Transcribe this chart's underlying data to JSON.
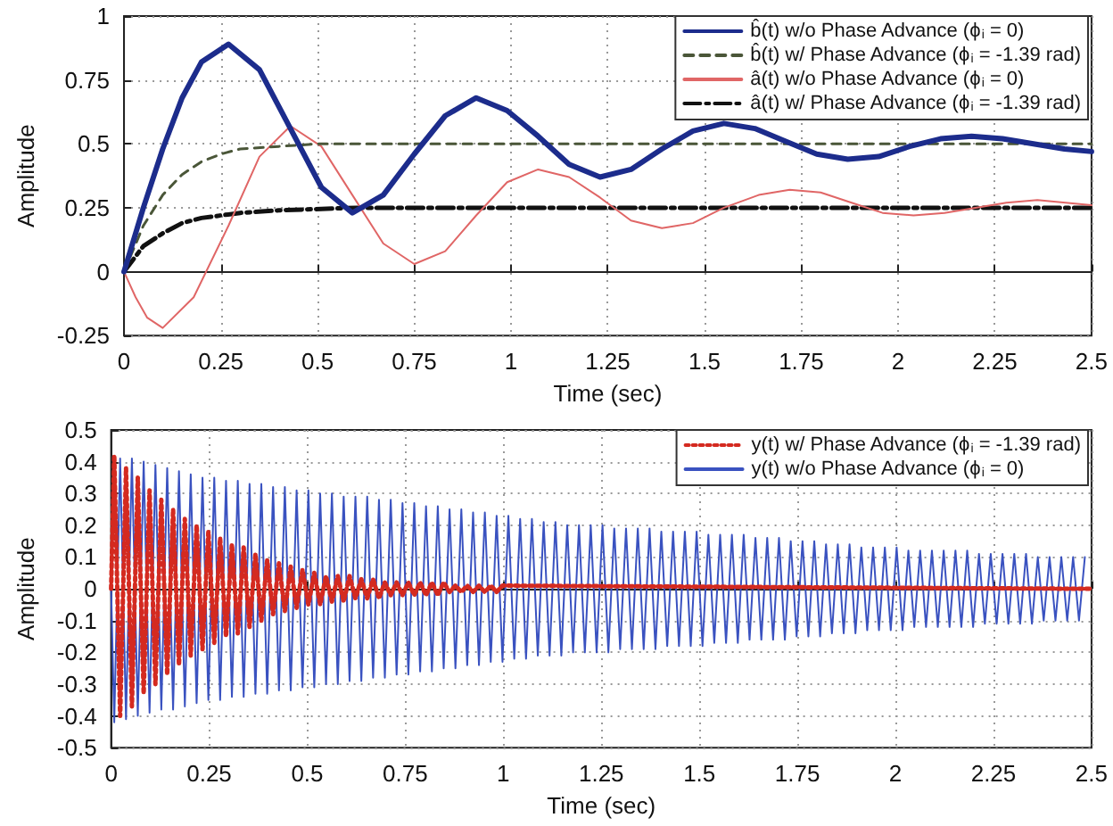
{
  "chart_data": [
    {
      "type": "line",
      "xlabel": "Time (sec)",
      "ylabel": "Amplitude",
      "xlim": [
        0,
        2.5
      ],
      "xticks": [
        0,
        0.25,
        0.5,
        0.75,
        1,
        1.25,
        1.5,
        1.75,
        2,
        2.25,
        2.5
      ],
      "ylim": [
        -0.25,
        1
      ],
      "yticks": [
        -0.25,
        0,
        0.25,
        0.5,
        0.75,
        1
      ],
      "grid": true,
      "legend": "top right",
      "marker": "none",
      "series": [
        {
          "name": "b̂(t) w/o Phase Advance (ϕ$_{i}$ = 0)",
          "color": "#1c2c8c",
          "line_style": "solid",
          "x": [
            0,
            0.05,
            0.1,
            0.15,
            0.2,
            0.27,
            0.35,
            0.43,
            0.51,
            0.59,
            0.67,
            0.75,
            0.83,
            0.91,
            0.99,
            1.07,
            1.15,
            1.23,
            1.31,
            1.39,
            1.47,
            1.55,
            1.63,
            1.71,
            1.79,
            1.87,
            1.95,
            2.03,
            2.11,
            2.19,
            2.27,
            2.35,
            2.43,
            2.5
          ],
          "values": [
            0,
            0.25,
            0.48,
            0.68,
            0.82,
            0.89,
            0.79,
            0.56,
            0.33,
            0.23,
            0.3,
            0.46,
            0.61,
            0.68,
            0.63,
            0.53,
            0.42,
            0.37,
            0.4,
            0.48,
            0.55,
            0.58,
            0.56,
            0.51,
            0.46,
            0.44,
            0.45,
            0.49,
            0.52,
            0.53,
            0.52,
            0.5,
            0.48,
            0.47
          ]
        },
        {
          "name": "b̂(t) w/ Phase Advance (ϕ$_{i}$ = -1.39 rad)",
          "color": "#4a5638",
          "line_style": "dashed",
          "x": [
            0,
            0.05,
            0.1,
            0.15,
            0.2,
            0.25,
            0.3,
            0.4,
            0.5,
            2.5
          ],
          "values": [
            0,
            0.18,
            0.3,
            0.38,
            0.43,
            0.46,
            0.48,
            0.49,
            0.5,
            0.5
          ]
        },
        {
          "name": "â(t) w/o Phase Advance (ϕ$_{i}$ = 0)",
          "color": "#e06666",
          "line_style": "solid",
          "x": [
            0,
            0.03,
            0.06,
            0.1,
            0.18,
            0.27,
            0.35,
            0.43,
            0.51,
            0.59,
            0.67,
            0.75,
            0.83,
            0.91,
            0.99,
            1.07,
            1.15,
            1.23,
            1.31,
            1.39,
            1.47,
            1.55,
            1.64,
            1.72,
            1.8,
            1.88,
            1.96,
            2.04,
            2.12,
            2.2,
            2.28,
            2.36,
            2.5
          ],
          "values": [
            0,
            -0.1,
            -0.18,
            -0.22,
            -0.1,
            0.18,
            0.45,
            0.57,
            0.49,
            0.3,
            0.11,
            0.03,
            0.08,
            0.22,
            0.35,
            0.4,
            0.37,
            0.29,
            0.2,
            0.17,
            0.19,
            0.25,
            0.3,
            0.32,
            0.31,
            0.27,
            0.23,
            0.22,
            0.23,
            0.25,
            0.27,
            0.28,
            0.26
          ]
        },
        {
          "name": "â(t) w/ Phase Advance (ϕ$_{i}$ = -1.39 rad)",
          "color": "#111111",
          "line_style": "dashdot",
          "x": [
            0,
            0.05,
            0.1,
            0.15,
            0.2,
            0.25,
            0.3,
            0.4,
            0.6,
            2.5
          ],
          "values": [
            0,
            0.1,
            0.15,
            0.19,
            0.21,
            0.22,
            0.23,
            0.24,
            0.25,
            0.25
          ]
        }
      ]
    },
    {
      "type": "line",
      "xlabel": "Time (sec)",
      "ylabel": "Amplitude",
      "xlim": [
        0,
        2.5
      ],
      "xticks": [
        0,
        0.25,
        0.5,
        0.75,
        1,
        1.25,
        1.5,
        1.75,
        2,
        2.25,
        2.5
      ],
      "ylim": [
        -0.5,
        0.5
      ],
      "yticks": [
        -0.5,
        -0.4,
        -0.3,
        -0.2,
        -0.1,
        0,
        0.1,
        0.2,
        0.3,
        0.4,
        0.5
      ],
      "grid": true,
      "legend": "top right",
      "marker": "none",
      "series": [
        {
          "name": "y(t) w/ Phase Advance (ϕ$_{i}$ = -1.39 rad)",
          "color": "#d42a20",
          "line_style": "dotted",
          "x": [
            0,
            0.008,
            0.023,
            0.038,
            0.053,
            0.068,
            0.083,
            0.098,
            0.113,
            0.128,
            0.143,
            0.158,
            0.173,
            0.188,
            0.203,
            0.218,
            0.233,
            0.248,
            0.263,
            0.278,
            0.293,
            0.308,
            0.323,
            0.338,
            0.353,
            0.368,
            0.383,
            0.398,
            0.413,
            0.428,
            0.443,
            0.458,
            0.473,
            0.488,
            0.503,
            0.518,
            0.533,
            0.548,
            0.563,
            0.578,
            0.593,
            0.608,
            0.623,
            0.638,
            0.653,
            0.668,
            0.683,
            0.698,
            0.713,
            0.728,
            0.743,
            0.758,
            0.773,
            0.788,
            0.803,
            0.818,
            0.833,
            0.848,
            0.863,
            0.878,
            0.893,
            0.908,
            0.923,
            0.938,
            0.953,
            0.968,
            0.983,
            0.998,
            2.5
          ],
          "values": [
            0,
            0.42,
            -0.4,
            0.38,
            -0.37,
            0.35,
            -0.33,
            0.31,
            -0.3,
            0.28,
            -0.27,
            0.25,
            -0.24,
            0.22,
            -0.21,
            0.2,
            -0.19,
            0.18,
            -0.17,
            0.16,
            -0.15,
            0.14,
            -0.14,
            0.13,
            -0.12,
            0.11,
            -0.1,
            0.09,
            -0.08,
            0.08,
            -0.07,
            0.07,
            -0.06,
            0.06,
            -0.05,
            0.05,
            -0.05,
            0.04,
            -0.04,
            0.04,
            -0.04,
            0.04,
            -0.03,
            0.03,
            -0.03,
            0.03,
            -0.03,
            0.02,
            -0.02,
            0.02,
            -0.02,
            0.02,
            -0.02,
            0.02,
            -0.02,
            0.02,
            -0.02,
            0.02,
            -0.01,
            0.01,
            -0.01,
            0.01,
            -0.01,
            0.01,
            -0.01,
            0.01,
            -0.01,
            0.01,
            0
          ]
        },
        {
          "name": "y(t) w/o Phase Advance (ϕ$_{i}$ = 0)",
          "color": "#3a52c0",
          "line_style": "solid",
          "x": [
            0,
            0.008,
            0.023,
            0.038,
            0.053,
            0.068,
            0.083,
            0.098,
            0.113,
            0.128,
            0.143,
            0.158,
            0.173,
            0.188,
            0.203,
            0.218,
            0.233,
            0.248,
            0.263,
            0.278,
            0.293,
            0.308,
            0.323,
            0.338,
            0.353,
            0.368,
            0.383,
            0.398,
            0.413,
            0.428,
            0.443,
            0.458,
            0.473,
            0.488,
            0.503,
            0.518,
            0.533,
            0.548,
            0.563,
            0.578,
            0.593,
            0.608,
            0.623,
            0.638,
            0.653,
            0.668,
            0.683,
            0.698,
            0.713,
            0.728,
            0.743,
            0.758,
            0.773,
            0.788,
            0.803,
            0.818,
            0.833,
            0.848,
            0.863,
            0.878,
            0.893,
            0.908,
            0.923,
            0.938,
            0.953,
            0.968,
            0.983,
            0.998,
            1.013,
            1.028,
            1.043,
            1.058,
            1.073,
            1.088,
            1.103,
            1.118,
            1.133,
            1.148,
            1.163,
            1.178,
            1.193,
            1.208,
            1.223,
            1.238,
            1.253,
            1.268,
            1.283,
            1.298,
            1.313,
            1.328,
            1.343,
            1.358,
            1.373,
            1.388,
            1.403,
            1.418,
            1.433,
            1.448,
            1.463,
            1.478,
            1.493,
            1.508,
            1.523,
            1.538,
            1.553,
            1.568,
            1.583,
            1.598,
            1.613,
            1.628,
            1.643,
            1.658,
            1.673,
            1.688,
            1.703,
            1.718,
            1.733,
            1.748,
            1.763,
            1.778,
            1.793,
            1.808,
            1.823,
            1.838,
            1.853,
            1.868,
            1.883,
            1.898,
            1.913,
            1.928,
            1.943,
            1.958,
            1.973,
            1.988,
            2.003,
            2.018,
            2.033,
            2.048,
            2.063,
            2.078,
            2.093,
            2.108,
            2.123,
            2.138,
            2.153,
            2.168,
            2.183,
            2.198,
            2.213,
            2.228,
            2.243,
            2.258,
            2.273,
            2.288,
            2.303,
            2.318,
            2.333,
            2.348,
            2.363,
            2.378,
            2.393,
            2.408,
            2.423,
            2.438,
            2.453,
            2.468,
            2.483
          ],
          "values": [
            0,
            -0.42,
            0.41,
            -0.41,
            0.41,
            -0.4,
            0.4,
            -0.39,
            0.39,
            -0.38,
            0.38,
            -0.38,
            0.37,
            -0.37,
            0.36,
            -0.36,
            0.35,
            -0.35,
            0.35,
            -0.35,
            0.34,
            -0.34,
            0.34,
            -0.34,
            0.33,
            -0.33,
            0.33,
            -0.33,
            0.32,
            -0.32,
            0.32,
            -0.32,
            0.31,
            -0.31,
            0.31,
            -0.31,
            0.3,
            -0.3,
            0.3,
            -0.3,
            0.29,
            -0.29,
            0.29,
            -0.29,
            0.29,
            -0.28,
            0.28,
            -0.28,
            0.28,
            -0.27,
            0.27,
            -0.27,
            0.27,
            -0.26,
            0.26,
            -0.26,
            0.26,
            -0.25,
            0.25,
            -0.25,
            0.25,
            -0.24,
            0.24,
            -0.24,
            0.24,
            -0.23,
            0.23,
            -0.23,
            0.23,
            -0.22,
            0.22,
            -0.22,
            0.22,
            -0.21,
            0.21,
            -0.21,
            0.21,
            -0.21,
            0.2,
            -0.2,
            0.2,
            -0.2,
            0.2,
            -0.2,
            0.2,
            -0.2,
            0.19,
            -0.19,
            0.19,
            -0.19,
            0.19,
            -0.19,
            0.19,
            -0.19,
            0.18,
            -0.18,
            0.18,
            -0.18,
            0.18,
            -0.18,
            0.18,
            -0.18,
            0.17,
            -0.17,
            0.17,
            -0.17,
            0.17,
            -0.17,
            0.17,
            -0.16,
            0.16,
            -0.16,
            0.16,
            -0.16,
            0.16,
            -0.16,
            0.15,
            -0.15,
            0.15,
            -0.15,
            0.15,
            -0.15,
            0.14,
            -0.14,
            0.14,
            -0.14,
            0.14,
            -0.14,
            0.13,
            -0.13,
            0.13,
            -0.13,
            0.13,
            -0.13,
            0.13,
            -0.13,
            0.12,
            -0.12,
            0.12,
            -0.12,
            0.12,
            -0.12,
            0.12,
            -0.12,
            0.12,
            -0.12,
            0.12,
            -0.12,
            0.11,
            -0.11,
            0.11,
            -0.11,
            0.11,
            -0.11,
            0.11,
            -0.11,
            0.11,
            -0.11,
            0.1,
            -0.1,
            0.1,
            -0.1,
            0.1,
            -0.1,
            0.1,
            -0.1,
            0.1
          ]
        }
      ]
    }
  ]
}
